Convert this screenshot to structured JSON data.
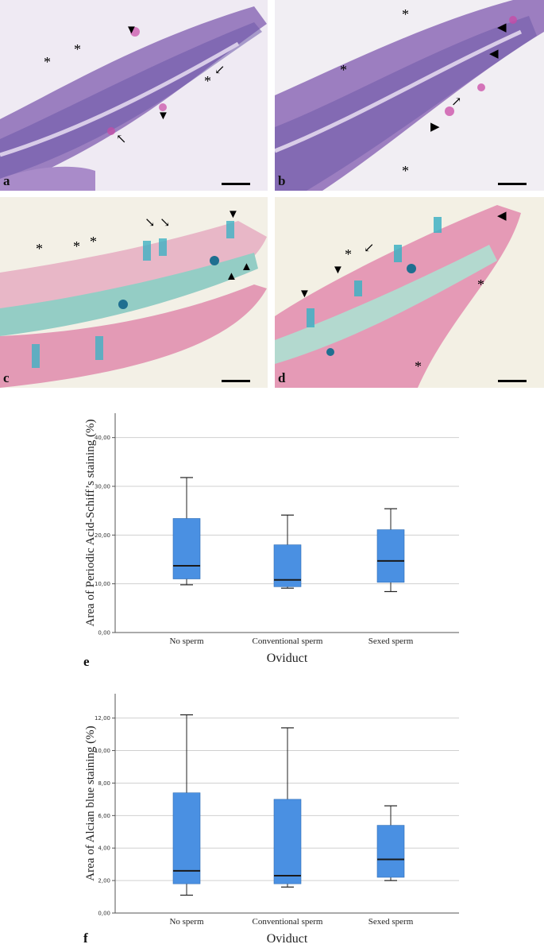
{
  "micrographs": [
    {
      "letter": "a",
      "stain": "purple",
      "asterisks": [
        "*",
        "*",
        "*"
      ]
    },
    {
      "letter": "b",
      "stain": "purple",
      "asterisks": [
        "*",
        "*",
        "*"
      ]
    },
    {
      "letter": "c",
      "stain": "alcian",
      "asterisks": [
        "*",
        "*",
        "*"
      ]
    },
    {
      "letter": "d",
      "stain": "alcian",
      "asterisks": [
        "*",
        "*",
        "*"
      ]
    }
  ],
  "colors": {
    "box_fill": "#4a90e2",
    "median": "#1a1a1a",
    "grid": "#d0d0d0",
    "purple_bg": "#9e7cc0",
    "teal": "#3fb2c4",
    "pink": "#e86aa0"
  },
  "chart_data": [
    {
      "type": "box",
      "letter": "e",
      "xlabel": "Oviduct",
      "ylabel": "Area of Periodic Acid-Schiff’s staining (%)",
      "ylim": [
        0,
        45
      ],
      "yticks": [
        "0,00",
        "10,00",
        "20,00",
        "30,00",
        "40,00"
      ],
      "ytick_values": [
        0,
        10,
        20,
        30,
        40
      ],
      "grid": true,
      "categories": [
        "No sperm",
        "Conventional sperm",
        "Sexed sperm"
      ],
      "boxes": [
        {
          "min": 9.8,
          "q1": 11.0,
          "median": 13.7,
          "q3": 23.4,
          "max": 31.8
        },
        {
          "min": 9.1,
          "q1": 9.4,
          "median": 10.8,
          "q3": 18.0,
          "max": 24.1
        },
        {
          "min": 8.4,
          "q1": 10.3,
          "median": 14.7,
          "q3": 21.1,
          "max": 25.4
        }
      ]
    },
    {
      "type": "box",
      "letter": "f",
      "xlabel": "Oviduct",
      "ylabel": "Area of Alcian blue staining (%)",
      "ylim": [
        0,
        13.5
      ],
      "yticks": [
        "0,00",
        "2,00",
        "4,00",
        "6,00",
        "8,00",
        "10,00",
        "12,00"
      ],
      "ytick_values": [
        0,
        2,
        4,
        6,
        8,
        10,
        12
      ],
      "grid": true,
      "categories": [
        "No sperm",
        "Conventional sperm",
        "Sexed sperm"
      ],
      "boxes": [
        {
          "min": 1.1,
          "q1": 1.8,
          "median": 2.6,
          "q3": 7.4,
          "max": 12.2
        },
        {
          "min": 1.6,
          "q1": 1.8,
          "median": 2.3,
          "q3": 7.0,
          "max": 11.4
        },
        {
          "min": 2.0,
          "q1": 2.2,
          "median": 3.3,
          "q3": 5.4,
          "max": 6.6
        }
      ]
    }
  ]
}
